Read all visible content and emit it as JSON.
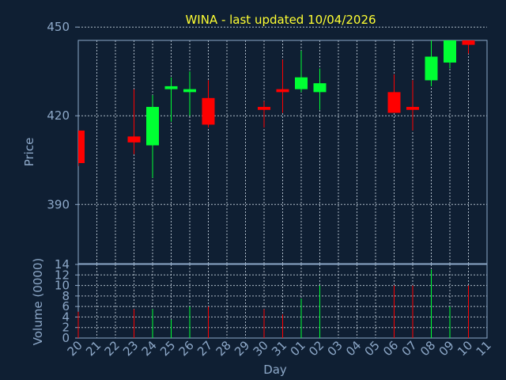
{
  "chart_data": {
    "type": "candlestick",
    "title": "WINA - last updated 10/04/2026",
    "xlabel": "Day",
    "price_ylabel": "Price",
    "volume_ylabel": "Volume (0000)",
    "price_ylim": [
      370,
      445.5
    ],
    "price_yticks": [
      "390",
      "420",
      "450",
      "480"
    ],
    "volume_ylim": [
      0,
      14
    ],
    "volume_yticks": [
      "0",
      "2",
      "4",
      "6",
      "8",
      "10",
      "12",
      "14"
    ],
    "days": [
      "20",
      "21",
      "22",
      "23",
      "24",
      "25",
      "26",
      "27",
      "28",
      "29",
      "30",
      "31",
      "01",
      "02",
      "03",
      "04",
      "05",
      "06",
      "07",
      "08",
      "09",
      "10",
      "11"
    ],
    "up_color": "#00ff33",
    "down_color": "#ff0000",
    "grid": true,
    "candles": [
      {
        "day": "20",
        "open": 415,
        "high": 415,
        "low": 403,
        "close": 404,
        "volume": 5
      },
      {
        "day": "23",
        "open": 413,
        "high": 429,
        "low": 407,
        "close": 411,
        "volume": 5.5
      },
      {
        "day": "24",
        "open": 410,
        "high": 427,
        "low": 399,
        "close": 423,
        "volume": 5.5
      },
      {
        "day": "25",
        "open": 429,
        "high": 433,
        "low": 418,
        "close": 430,
        "volume": 3.5
      },
      {
        "day": "26",
        "open": 428,
        "high": 435,
        "low": 420,
        "close": 429,
        "volume": 6
      },
      {
        "day": "27",
        "open": 426,
        "high": 432,
        "low": 416,
        "close": 417,
        "volume": 6
      },
      {
        "day": "30",
        "open": 423,
        "high": 425,
        "low": 416,
        "close": 422,
        "volume": 5.5
      },
      {
        "day": "31",
        "open": 429,
        "high": 439,
        "low": 421,
        "close": 428,
        "volume": 4.5
      },
      {
        "day": "01",
        "open": 429,
        "high": 442,
        "low": 428,
        "close": 433,
        "volume": 7.5
      },
      {
        "day": "02",
        "open": 428,
        "high": 436,
        "low": 422,
        "close": 431,
        "volume": 10
      },
      {
        "day": "06",
        "open": 428,
        "high": 434,
        "low": 421,
        "close": 421,
        "volume": 10
      },
      {
        "day": "07",
        "open": 423,
        "high": 432,
        "low": 415,
        "close": 422,
        "volume": 10
      },
      {
        "day": "08",
        "open": 432,
        "high": 448,
        "low": 430,
        "close": 440,
        "volume": 13
      },
      {
        "day": "09",
        "open": 438,
        "high": 462,
        "low": 436,
        "close": 457,
        "volume": 6
      },
      {
        "day": "10",
        "open": 457,
        "high": 457,
        "low": 441,
        "close": 444,
        "volume": 10
      }
    ]
  }
}
